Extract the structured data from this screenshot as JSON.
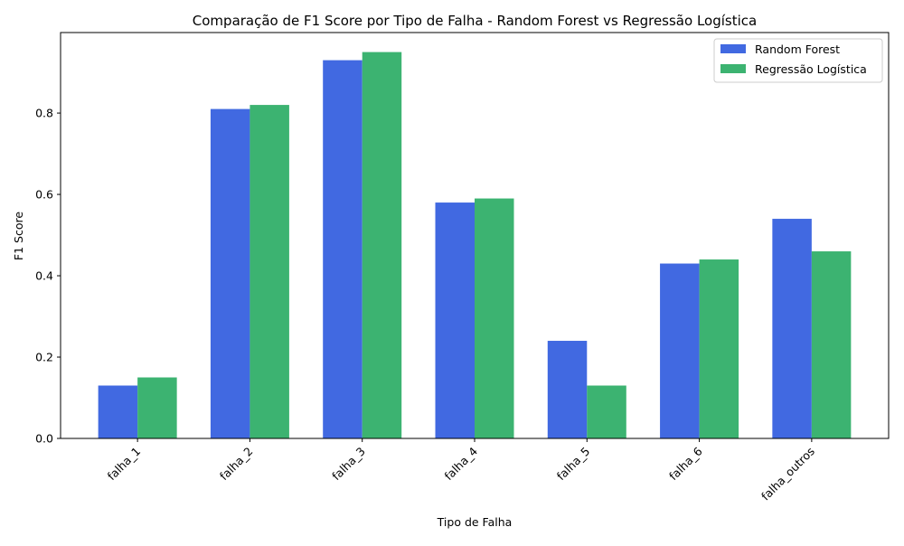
{
  "chart_data": {
    "type": "bar",
    "title": "Comparação de F1 Score por Tipo de Falha - Random Forest vs Regressão Logística",
    "xlabel": "Tipo de Falha",
    "ylabel": "F1 Score",
    "categories": [
      "falha_1",
      "falha_2",
      "falha_3",
      "falha_4",
      "falha_5",
      "falha_6",
      "falha_outros"
    ],
    "series": [
      {
        "name": "Random Forest",
        "color": "#4169E1",
        "values": [
          0.13,
          0.81,
          0.93,
          0.58,
          0.24,
          0.43,
          0.54
        ]
      },
      {
        "name": "Regressão Logística",
        "color": "#3CB371",
        "values": [
          0.15,
          0.82,
          0.95,
          0.59,
          0.13,
          0.44,
          0.46
        ]
      }
    ],
    "ylim": [
      0,
      0.998
    ],
    "yticks": [
      0.0,
      0.2,
      0.4,
      0.6,
      0.8
    ],
    "ytick_labels": [
      "0.0",
      "0.2",
      "0.4",
      "0.6",
      "0.8"
    ],
    "grid": false,
    "legend_position": "top-right",
    "xtick_rotation": 45
  }
}
